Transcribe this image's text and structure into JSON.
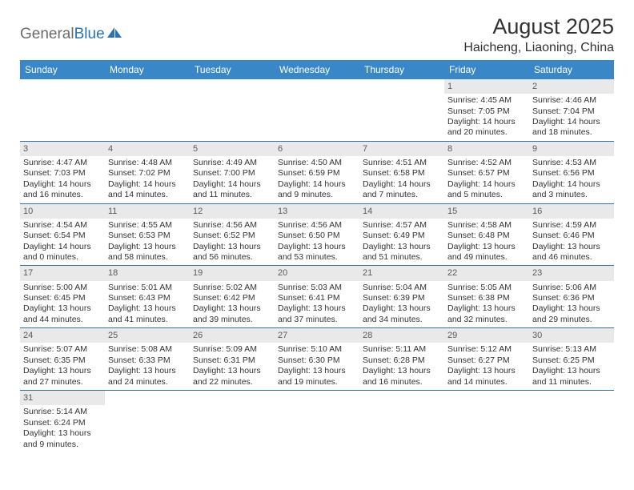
{
  "logo": {
    "text1": "General",
    "text2": "Blue"
  },
  "title": "August 2025",
  "location": "Haicheng, Liaoning, China",
  "colors": {
    "header_bg": "#3a87c8",
    "header_fg": "#ffffff",
    "daynum_bg": "#e9e9e9",
    "daynum_fg": "#5a5a5a",
    "cell_border": "#3a6fa8",
    "text": "#333333",
    "logo_gray": "#6b6b6b",
    "logo_blue": "#2a72b5"
  },
  "typography": {
    "title_fontsize": 27,
    "location_fontsize": 16,
    "header_fontsize": 12,
    "cell_fontsize": 10.5,
    "daynum_fontsize": 11
  },
  "day_headers": [
    "Sunday",
    "Monday",
    "Tuesday",
    "Wednesday",
    "Thursday",
    "Friday",
    "Saturday"
  ],
  "weeks": [
    [
      {
        "empty": true
      },
      {
        "empty": true
      },
      {
        "empty": true
      },
      {
        "empty": true
      },
      {
        "empty": true
      },
      {
        "day": "1",
        "sunrise": "Sunrise: 4:45 AM",
        "sunset": "Sunset: 7:05 PM",
        "daylight": "Daylight: 14 hours and 20 minutes."
      },
      {
        "day": "2",
        "sunrise": "Sunrise: 4:46 AM",
        "sunset": "Sunset: 7:04 PM",
        "daylight": "Daylight: 14 hours and 18 minutes."
      }
    ],
    [
      {
        "day": "3",
        "sunrise": "Sunrise: 4:47 AM",
        "sunset": "Sunset: 7:03 PM",
        "daylight": "Daylight: 14 hours and 16 minutes."
      },
      {
        "day": "4",
        "sunrise": "Sunrise: 4:48 AM",
        "sunset": "Sunset: 7:02 PM",
        "daylight": "Daylight: 14 hours and 14 minutes."
      },
      {
        "day": "5",
        "sunrise": "Sunrise: 4:49 AM",
        "sunset": "Sunset: 7:00 PM",
        "daylight": "Daylight: 14 hours and 11 minutes."
      },
      {
        "day": "6",
        "sunrise": "Sunrise: 4:50 AM",
        "sunset": "Sunset: 6:59 PM",
        "daylight": "Daylight: 14 hours and 9 minutes."
      },
      {
        "day": "7",
        "sunrise": "Sunrise: 4:51 AM",
        "sunset": "Sunset: 6:58 PM",
        "daylight": "Daylight: 14 hours and 7 minutes."
      },
      {
        "day": "8",
        "sunrise": "Sunrise: 4:52 AM",
        "sunset": "Sunset: 6:57 PM",
        "daylight": "Daylight: 14 hours and 5 minutes."
      },
      {
        "day": "9",
        "sunrise": "Sunrise: 4:53 AM",
        "sunset": "Sunset: 6:56 PM",
        "daylight": "Daylight: 14 hours and 3 minutes."
      }
    ],
    [
      {
        "day": "10",
        "sunrise": "Sunrise: 4:54 AM",
        "sunset": "Sunset: 6:54 PM",
        "daylight": "Daylight: 14 hours and 0 minutes."
      },
      {
        "day": "11",
        "sunrise": "Sunrise: 4:55 AM",
        "sunset": "Sunset: 6:53 PM",
        "daylight": "Daylight: 13 hours and 58 minutes."
      },
      {
        "day": "12",
        "sunrise": "Sunrise: 4:56 AM",
        "sunset": "Sunset: 6:52 PM",
        "daylight": "Daylight: 13 hours and 56 minutes."
      },
      {
        "day": "13",
        "sunrise": "Sunrise: 4:56 AM",
        "sunset": "Sunset: 6:50 PM",
        "daylight": "Daylight: 13 hours and 53 minutes."
      },
      {
        "day": "14",
        "sunrise": "Sunrise: 4:57 AM",
        "sunset": "Sunset: 6:49 PM",
        "daylight": "Daylight: 13 hours and 51 minutes."
      },
      {
        "day": "15",
        "sunrise": "Sunrise: 4:58 AM",
        "sunset": "Sunset: 6:48 PM",
        "daylight": "Daylight: 13 hours and 49 minutes."
      },
      {
        "day": "16",
        "sunrise": "Sunrise: 4:59 AM",
        "sunset": "Sunset: 6:46 PM",
        "daylight": "Daylight: 13 hours and 46 minutes."
      }
    ],
    [
      {
        "day": "17",
        "sunrise": "Sunrise: 5:00 AM",
        "sunset": "Sunset: 6:45 PM",
        "daylight": "Daylight: 13 hours and 44 minutes."
      },
      {
        "day": "18",
        "sunrise": "Sunrise: 5:01 AM",
        "sunset": "Sunset: 6:43 PM",
        "daylight": "Daylight: 13 hours and 41 minutes."
      },
      {
        "day": "19",
        "sunrise": "Sunrise: 5:02 AM",
        "sunset": "Sunset: 6:42 PM",
        "daylight": "Daylight: 13 hours and 39 minutes."
      },
      {
        "day": "20",
        "sunrise": "Sunrise: 5:03 AM",
        "sunset": "Sunset: 6:41 PM",
        "daylight": "Daylight: 13 hours and 37 minutes."
      },
      {
        "day": "21",
        "sunrise": "Sunrise: 5:04 AM",
        "sunset": "Sunset: 6:39 PM",
        "daylight": "Daylight: 13 hours and 34 minutes."
      },
      {
        "day": "22",
        "sunrise": "Sunrise: 5:05 AM",
        "sunset": "Sunset: 6:38 PM",
        "daylight": "Daylight: 13 hours and 32 minutes."
      },
      {
        "day": "23",
        "sunrise": "Sunrise: 5:06 AM",
        "sunset": "Sunset: 6:36 PM",
        "daylight": "Daylight: 13 hours and 29 minutes."
      }
    ],
    [
      {
        "day": "24",
        "sunrise": "Sunrise: 5:07 AM",
        "sunset": "Sunset: 6:35 PM",
        "daylight": "Daylight: 13 hours and 27 minutes."
      },
      {
        "day": "25",
        "sunrise": "Sunrise: 5:08 AM",
        "sunset": "Sunset: 6:33 PM",
        "daylight": "Daylight: 13 hours and 24 minutes."
      },
      {
        "day": "26",
        "sunrise": "Sunrise: 5:09 AM",
        "sunset": "Sunset: 6:31 PM",
        "daylight": "Daylight: 13 hours and 22 minutes."
      },
      {
        "day": "27",
        "sunrise": "Sunrise: 5:10 AM",
        "sunset": "Sunset: 6:30 PM",
        "daylight": "Daylight: 13 hours and 19 minutes."
      },
      {
        "day": "28",
        "sunrise": "Sunrise: 5:11 AM",
        "sunset": "Sunset: 6:28 PM",
        "daylight": "Daylight: 13 hours and 16 minutes."
      },
      {
        "day": "29",
        "sunrise": "Sunrise: 5:12 AM",
        "sunset": "Sunset: 6:27 PM",
        "daylight": "Daylight: 13 hours and 14 minutes."
      },
      {
        "day": "30",
        "sunrise": "Sunrise: 5:13 AM",
        "sunset": "Sunset: 6:25 PM",
        "daylight": "Daylight: 13 hours and 11 minutes."
      }
    ],
    [
      {
        "day": "31",
        "sunrise": "Sunrise: 5:14 AM",
        "sunset": "Sunset: 6:24 PM",
        "daylight": "Daylight: 13 hours and 9 minutes."
      },
      {
        "empty": true
      },
      {
        "empty": true
      },
      {
        "empty": true
      },
      {
        "empty": true
      },
      {
        "empty": true
      },
      {
        "empty": true
      }
    ]
  ]
}
